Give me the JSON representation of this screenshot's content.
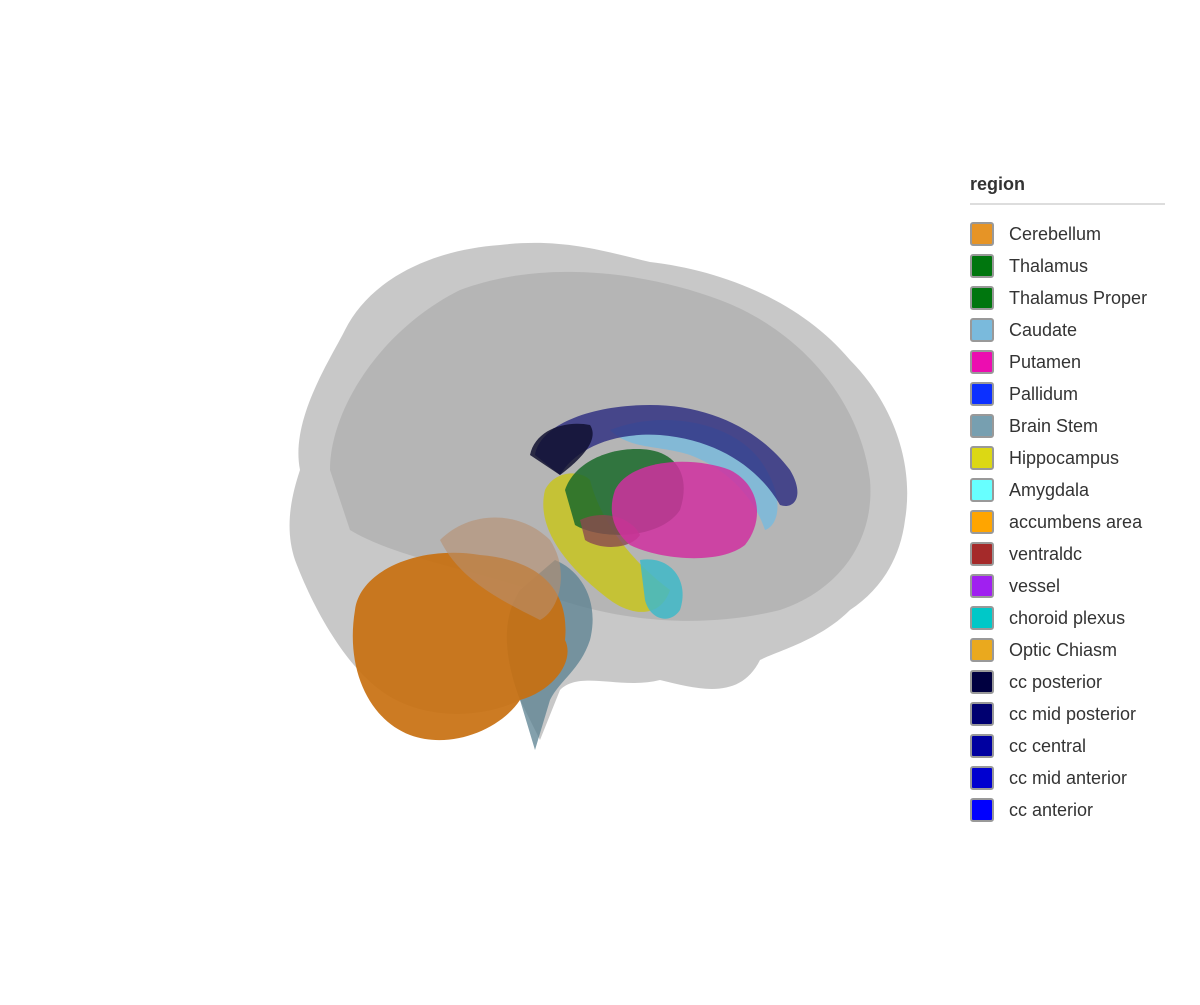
{
  "legend": {
    "title": "region",
    "items": [
      {
        "label": "Cerebellum",
        "color": "#E69426"
      },
      {
        "label": "Thalamus",
        "color": "#00760E"
      },
      {
        "label": "Thalamus Proper",
        "color": "#00760E"
      },
      {
        "label": "Caudate",
        "color": "#7ABADC"
      },
      {
        "label": "Putamen",
        "color": "#EC0DB0"
      },
      {
        "label": "Pallidum",
        "color": "#0C30FF"
      },
      {
        "label": "Brain Stem",
        "color": "#779FB0"
      },
      {
        "label": "Hippocampus",
        "color": "#DCD814"
      },
      {
        "label": "Amygdala",
        "color": "#67FFFF"
      },
      {
        "label": "accumbens area",
        "color": "#FFA500"
      },
      {
        "label": "ventraldc",
        "color": "#A52A2A"
      },
      {
        "label": "vessel",
        "color": "#A020F0"
      },
      {
        "label": "choroid plexus",
        "color": "#00C8C8"
      },
      {
        "label": "Optic Chiasm",
        "color": "#EAA91E"
      },
      {
        "label": "cc posterior",
        "color": "#000040"
      },
      {
        "label": "cc mid posterior",
        "color": "#000070"
      },
      {
        "label": "cc central",
        "color": "#0000A0"
      },
      {
        "label": "cc mid anterior",
        "color": "#0000D0"
      },
      {
        "label": "cc anterior",
        "color": "#0000FF"
      }
    ]
  },
  "scene": {
    "cortex_color": "#A0A0A0"
  }
}
